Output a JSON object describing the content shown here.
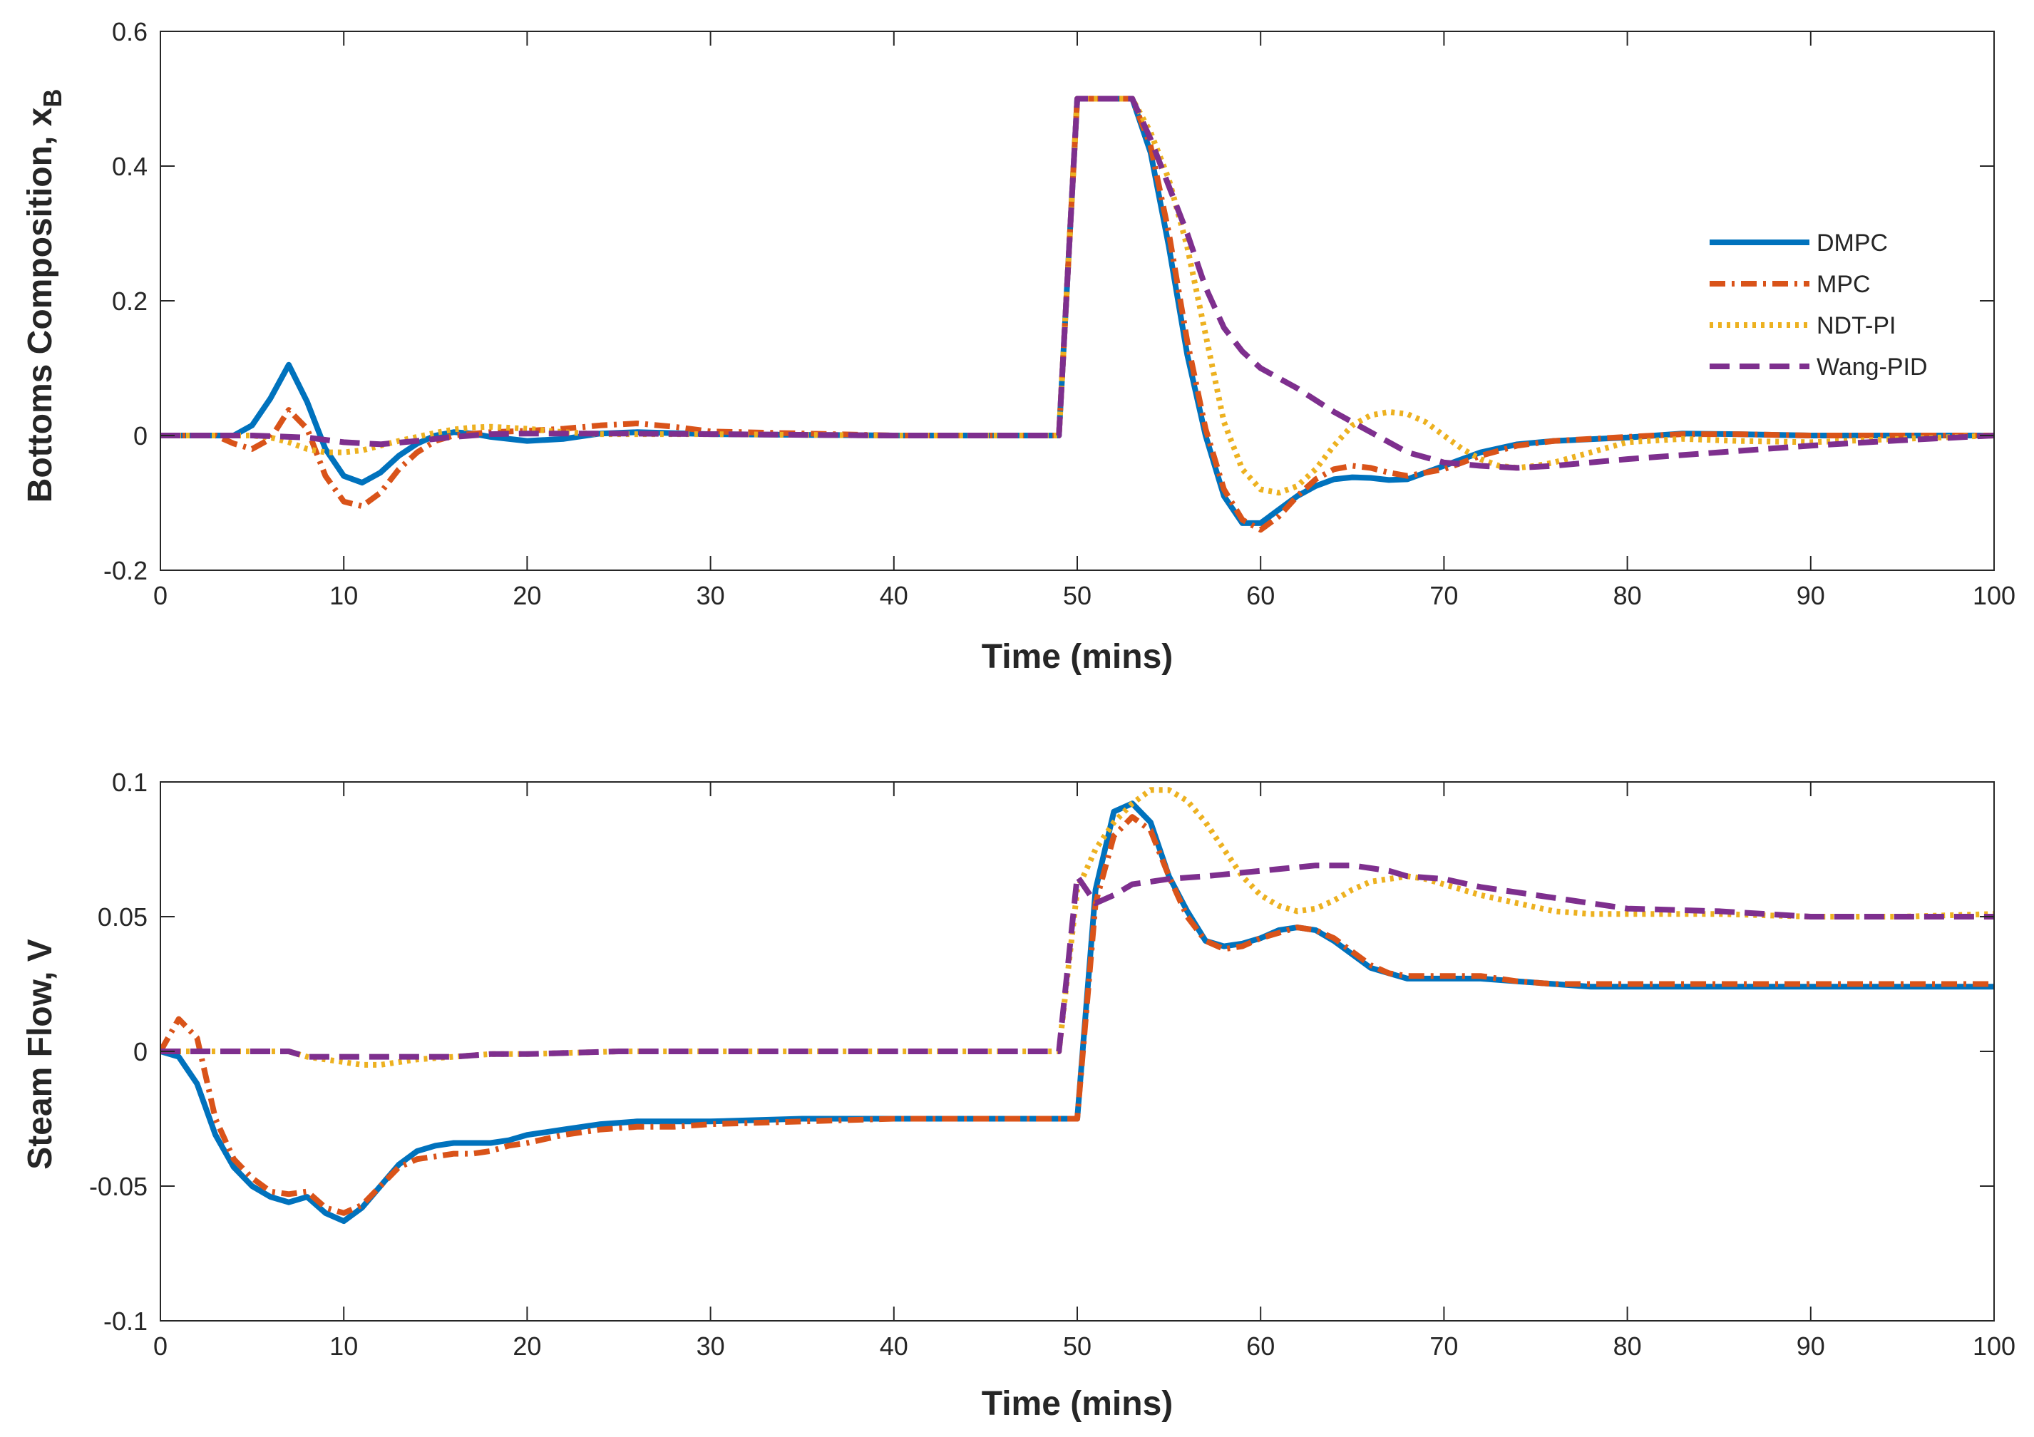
{
  "chart_data": [
    {
      "type": "line",
      "id": "top",
      "title": "",
      "xlabel": "Time (mins)",
      "ylabel": "Bottoms Composition, x",
      "ylabel_sub": "B",
      "xlim": [
        0,
        100
      ],
      "ylim": [
        -0.2,
        0.6
      ],
      "xticks": [
        0,
        10,
        20,
        30,
        40,
        50,
        60,
        70,
        80,
        90,
        100
      ],
      "xtick_labels": [
        "0",
        "10",
        "20",
        "30",
        "40",
        "50",
        "60",
        "70",
        "80",
        "90",
        "100"
      ],
      "yticks": [
        -0.2,
        0,
        0.2,
        0.4,
        0.6
      ],
      "ytick_labels": [
        "-0.2",
        "0",
        "0.2",
        "0.4",
        "0.6"
      ],
      "legend": {
        "position": "right",
        "entries": [
          "DMPC",
          "MPC",
          "NDT-PI",
          "Wang-PID"
        ]
      },
      "series": [
        {
          "name": "DMPC",
          "color": "#0072BD",
          "style": "solid",
          "x": [
            0,
            4,
            5,
            6,
            7,
            8,
            9,
            10,
            11,
            12,
            13,
            14,
            15,
            16,
            17,
            18,
            20,
            22,
            24,
            26,
            30,
            40,
            49,
            50,
            53,
            54,
            55,
            56,
            57,
            58,
            59,
            60,
            61,
            62,
            63,
            64,
            65,
            66,
            67,
            68,
            70,
            72,
            74,
            76,
            80,
            83,
            86,
            90,
            95,
            100
          ],
          "y": [
            0,
            0,
            0.015,
            0.055,
            0.105,
            0.05,
            -0.02,
            -0.06,
            -0.07,
            -0.055,
            -0.03,
            -0.012,
            0,
            0.005,
            0.003,
            -0.002,
            -0.008,
            -0.005,
            0.003,
            0.005,
            0.002,
            0,
            0,
            0.5,
            0.5,
            0.42,
            0.28,
            0.12,
            0,
            -0.09,
            -0.13,
            -0.13,
            -0.11,
            -0.09,
            -0.075,
            -0.065,
            -0.062,
            -0.063,
            -0.066,
            -0.065,
            -0.045,
            -0.025,
            -0.013,
            -0.008,
            -0.003,
            0.003,
            0.002,
            0,
            0,
            0
          ]
        },
        {
          "name": "MPC",
          "color": "#D95319",
          "style": "dashdot",
          "x": [
            0,
            3,
            4,
            5,
            6,
            7,
            8,
            9,
            10,
            11,
            12,
            13,
            14,
            15,
            16,
            18,
            20,
            22,
            24,
            26,
            28,
            30,
            40,
            49,
            50,
            53,
            54,
            55,
            56,
            57,
            58,
            59,
            60,
            61,
            62,
            63,
            64,
            65,
            66,
            67,
            68,
            70,
            72,
            74,
            76,
            80,
            83,
            86,
            90,
            95,
            100
          ],
          "y": [
            0,
            0,
            -0.012,
            -0.02,
            -0.005,
            0.038,
            0.01,
            -0.06,
            -0.098,
            -0.105,
            -0.085,
            -0.05,
            -0.025,
            -0.008,
            0,
            0.005,
            0.007,
            0.01,
            0.015,
            0.018,
            0.013,
            0.006,
            0,
            0,
            0.5,
            0.5,
            0.43,
            0.3,
            0.14,
            0.01,
            -0.08,
            -0.125,
            -0.14,
            -0.12,
            -0.09,
            -0.065,
            -0.05,
            -0.045,
            -0.048,
            -0.055,
            -0.06,
            -0.05,
            -0.03,
            -0.015,
            -0.008,
            -0.002,
            0.002,
            0.002,
            0,
            0,
            0
          ]
        },
        {
          "name": "NDT-PI",
          "color": "#EDB120",
          "style": "dotted",
          "x": [
            0,
            5,
            6,
            7,
            8,
            9,
            10,
            11,
            12,
            13,
            14,
            15,
            16,
            17,
            18,
            20,
            22,
            24,
            26,
            30,
            40,
            49,
            50,
            53,
            54,
            55,
            56,
            57,
            58,
            59,
            60,
            61,
            62,
            63,
            64,
            65,
            66,
            67,
            68,
            69,
            70,
            71,
            72,
            73,
            74,
            75,
            76,
            78,
            80,
            83,
            86,
            90,
            95,
            100
          ],
          "y": [
            0,
            0,
            -0.003,
            -0.01,
            -0.02,
            -0.025,
            -0.025,
            -0.022,
            -0.015,
            -0.008,
            -0.002,
            0.004,
            0.009,
            0.012,
            0.013,
            0.01,
            0.005,
            0.002,
            0.002,
            0.002,
            0,
            0,
            0.5,
            0.5,
            0.45,
            0.38,
            0.28,
            0.15,
            0.02,
            -0.05,
            -0.08,
            -0.085,
            -0.075,
            -0.05,
            -0.015,
            0.015,
            0.03,
            0.035,
            0.032,
            0.02,
            0,
            -0.02,
            -0.035,
            -0.045,
            -0.048,
            -0.045,
            -0.04,
            -0.025,
            -0.01,
            -0.005,
            -0.008,
            -0.01,
            -0.005,
            0
          ]
        },
        {
          "name": "Wang-PID",
          "color": "#7E2F8E",
          "style": "dashed",
          "x": [
            0,
            5,
            8,
            10,
            12,
            14,
            16,
            18,
            20,
            25,
            30,
            40,
            49,
            50,
            53,
            54,
            55,
            56,
            57,
            58,
            59,
            60,
            62,
            64,
            66,
            68,
            70,
            72,
            74,
            76,
            80,
            85,
            90,
            95,
            100
          ],
          "y": [
            0,
            0,
            -0.003,
            -0.01,
            -0.013,
            -0.008,
            -0.002,
            0.002,
            0.003,
            0.003,
            0.002,
            0,
            0,
            0.5,
            0.5,
            0.44,
            0.37,
            0.3,
            0.22,
            0.16,
            0.125,
            0.1,
            0.07,
            0.035,
            0.005,
            -0.025,
            -0.04,
            -0.045,
            -0.048,
            -0.045,
            -0.035,
            -0.025,
            -0.015,
            -0.007,
            0
          ]
        }
      ]
    },
    {
      "type": "line",
      "id": "bottom",
      "title": "",
      "xlabel": "Time (mins)",
      "ylabel": "Steam Flow, V",
      "xlim": [
        0,
        100
      ],
      "ylim": [
        -0.1,
        0.1
      ],
      "xticks": [
        0,
        10,
        20,
        30,
        40,
        50,
        60,
        70,
        80,
        90,
        100
      ],
      "xtick_labels": [
        "0",
        "10",
        "20",
        "30",
        "40",
        "50",
        "60",
        "70",
        "80",
        "90",
        "100"
      ],
      "yticks": [
        -0.1,
        -0.05,
        0,
        0.05,
        0.1
      ],
      "ytick_labels": [
        "-0.1",
        "-0.05",
        "0",
        "0.05",
        "0.1"
      ],
      "series": [
        {
          "name": "DMPC",
          "color": "#0072BD",
          "style": "solid",
          "x": [
            0,
            1,
            2,
            3,
            4,
            5,
            6,
            7,
            8,
            9,
            10,
            11,
            12,
            13,
            14,
            15,
            16,
            17,
            18,
            19,
            20,
            22,
            24,
            26,
            28,
            30,
            35,
            40,
            45,
            49,
            50,
            51,
            52,
            53,
            54,
            55,
            56,
            57,
            58,
            59,
            60,
            61,
            62,
            63,
            64,
            65,
            66,
            67,
            68,
            69,
            70,
            72,
            74,
            76,
            78,
            80,
            85,
            90,
            95,
            100
          ],
          "y": [
            0,
            -0.002,
            -0.012,
            -0.031,
            -0.043,
            -0.05,
            -0.054,
            -0.056,
            -0.054,
            -0.06,
            -0.063,
            -0.058,
            -0.05,
            -0.042,
            -0.037,
            -0.035,
            -0.034,
            -0.034,
            -0.034,
            -0.033,
            -0.031,
            -0.029,
            -0.027,
            -0.026,
            -0.026,
            -0.026,
            -0.025,
            -0.025,
            -0.025,
            -0.025,
            -0.025,
            0.06,
            0.089,
            0.092,
            0.085,
            0.065,
            0.052,
            0.041,
            0.039,
            0.04,
            0.042,
            0.045,
            0.046,
            0.045,
            0.041,
            0.036,
            0.031,
            0.029,
            0.027,
            0.027,
            0.027,
            0.027,
            0.026,
            0.025,
            0.024,
            0.024,
            0.024,
            0.024,
            0.024,
            0.024
          ]
        },
        {
          "name": "MPC",
          "color": "#D95319",
          "style": "dashdot",
          "x": [
            0,
            1,
            2,
            3,
            4,
            5,
            6,
            7,
            8,
            9,
            10,
            11,
            12,
            13,
            14,
            15,
            16,
            17,
            18,
            19,
            20,
            22,
            24,
            26,
            28,
            30,
            35,
            40,
            45,
            49,
            50,
            51,
            52,
            53,
            54,
            55,
            56,
            57,
            58,
            59,
            60,
            61,
            62,
            63,
            64,
            65,
            66,
            67,
            68,
            69,
            70,
            71,
            72,
            74,
            76,
            78,
            80,
            85,
            90,
            95,
            100
          ],
          "y": [
            0,
            0.012,
            0.005,
            -0.025,
            -0.04,
            -0.047,
            -0.052,
            -0.053,
            -0.052,
            -0.058,
            -0.06,
            -0.057,
            -0.05,
            -0.043,
            -0.04,
            -0.039,
            -0.038,
            -0.038,
            -0.037,
            -0.035,
            -0.034,
            -0.031,
            -0.029,
            -0.028,
            -0.028,
            -0.027,
            -0.026,
            -0.025,
            -0.025,
            -0.025,
            -0.025,
            0.055,
            0.08,
            0.087,
            0.082,
            0.065,
            0.05,
            0.041,
            0.038,
            0.039,
            0.042,
            0.044,
            0.046,
            0.045,
            0.042,
            0.037,
            0.032,
            0.029,
            0.028,
            0.028,
            0.028,
            0.028,
            0.028,
            0.026,
            0.025,
            0.025,
            0.025,
            0.025,
            0.025,
            0.025,
            0.025
          ]
        },
        {
          "name": "NDT-PI",
          "color": "#EDB120",
          "style": "dotted",
          "x": [
            0,
            5,
            7,
            8,
            9,
            10,
            11,
            12,
            13,
            14,
            16,
            18,
            20,
            25,
            30,
            40,
            49,
            50,
            51,
            52,
            53,
            54,
            55,
            56,
            57,
            58,
            59,
            60,
            61,
            62,
            63,
            64,
            65,
            66,
            67,
            68,
            69,
            70,
            72,
            74,
            76,
            78,
            80,
            85,
            90,
            95,
            100
          ],
          "y": [
            0,
            0,
            0,
            -0.002,
            -0.003,
            -0.004,
            -0.005,
            -0.005,
            -0.004,
            -0.003,
            -0.002,
            -0.001,
            -0.001,
            0,
            0,
            0,
            0,
            0.06,
            0.075,
            0.085,
            0.092,
            0.097,
            0.097,
            0.093,
            0.085,
            0.075,
            0.065,
            0.058,
            0.054,
            0.052,
            0.053,
            0.056,
            0.06,
            0.063,
            0.064,
            0.065,
            0.064,
            0.062,
            0.058,
            0.055,
            0.052,
            0.051,
            0.051,
            0.051,
            0.05,
            0.05,
            0.051
          ]
        },
        {
          "name": "Wang-PID",
          "color": "#7E2F8E",
          "style": "dashed",
          "x": [
            0,
            5,
            7,
            8,
            10,
            12,
            14,
            16,
            18,
            20,
            25,
            30,
            40,
            49,
            50,
            51,
            52,
            53,
            54,
            55,
            57,
            60,
            63,
            65,
            67,
            68,
            70,
            72,
            75,
            78,
            80,
            85,
            90,
            95,
            100
          ],
          "y": [
            0,
            0,
            0,
            -0.002,
            -0.002,
            -0.002,
            -0.002,
            -0.002,
            -0.001,
            -0.001,
            0,
            0,
            0,
            0,
            0.065,
            0.055,
            0.058,
            0.062,
            0.063,
            0.064,
            0.065,
            0.067,
            0.069,
            0.069,
            0.067,
            0.065,
            0.064,
            0.061,
            0.058,
            0.055,
            0.053,
            0.052,
            0.05,
            0.05,
            0.05
          ]
        }
      ]
    }
  ]
}
